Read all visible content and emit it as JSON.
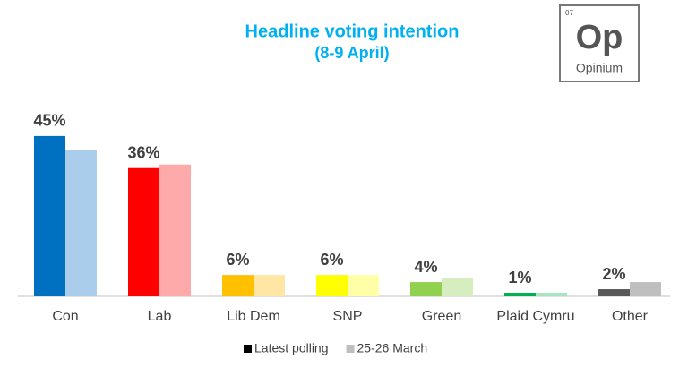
{
  "chart_data": {
    "type": "bar",
    "title": "Headline voting intention",
    "subtitle": "(8-9 April)",
    "categories": [
      "Con",
      "Lab",
      "Lib Dem",
      "SNP",
      "Green",
      "Plaid Cymru",
      "Other"
    ],
    "series": [
      {
        "name": "Latest polling",
        "color": "#000000",
        "colors": [
          "#0070c0",
          "#ff0000",
          "#ffc000",
          "#ffff00",
          "#92d050",
          "#00b050",
          "#595959"
        ],
        "values": [
          45,
          36,
          6,
          6,
          4,
          1,
          2
        ],
        "value_labels": [
          "45%",
          "36%",
          "6%",
          "6%",
          "4%",
          "1%",
          "2%"
        ]
      },
      {
        "name": "25-26 March",
        "color": "#bfbfbf",
        "colors": [
          "#a9cdea",
          "#ffaaaa",
          "#ffe6a5",
          "#ffffa8",
          "#d6edc0",
          "#a6e5c2",
          "#bfbfbf"
        ],
        "values": [
          41,
          37,
          6,
          6,
          5,
          1,
          4
        ]
      }
    ],
    "legend": "bottom"
  },
  "logo": {
    "number": "07",
    "symbol": "Op",
    "name": "Opinium"
  }
}
